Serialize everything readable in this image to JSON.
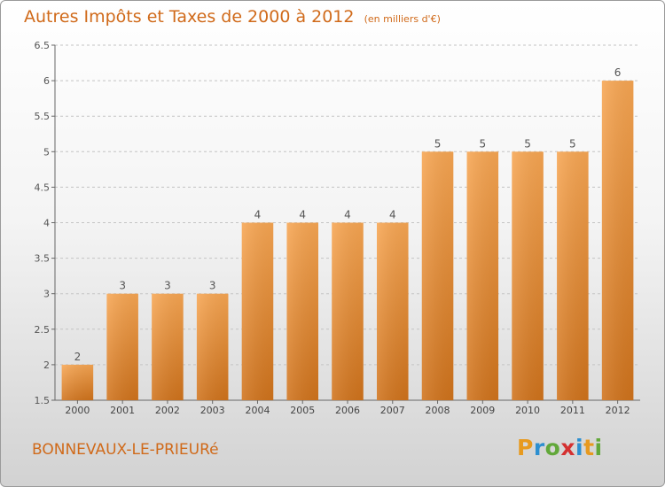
{
  "title": "Autres Impôts et Taxes de 2000 à 2012",
  "title_unit": "(en milliers d'€)",
  "commune": "BONNEVAUX-LE-PRIEURé",
  "logo": {
    "p": "P",
    "r": "r",
    "o": "o",
    "x": "x",
    "i1": "i",
    "t": "t",
    "i2": "i"
  },
  "colors": {
    "bar_top": "#f7a653",
    "bar_bottom": "#d0731c",
    "title": "#d06a1a"
  },
  "chart_data": {
    "type": "bar",
    "categories": [
      "2000",
      "2001",
      "2002",
      "2003",
      "2004",
      "2005",
      "2006",
      "2007",
      "2008",
      "2009",
      "2010",
      "2011",
      "2012"
    ],
    "values": [
      2,
      3,
      3,
      3,
      4,
      4,
      4,
      4,
      5,
      5,
      5,
      5,
      6
    ],
    "data_labels": [
      "2",
      "3",
      "3",
      "3",
      "4",
      "4",
      "4",
      "4",
      "5",
      "5",
      "5",
      "5",
      "6"
    ],
    "yticks": [
      "1.5",
      "2",
      "2.5",
      "3",
      "3.5",
      "4",
      "4.5",
      "5",
      "5.5",
      "6",
      "6.5"
    ],
    "ylim": [
      1.5,
      6.5
    ],
    "grid": "horizontal"
  }
}
